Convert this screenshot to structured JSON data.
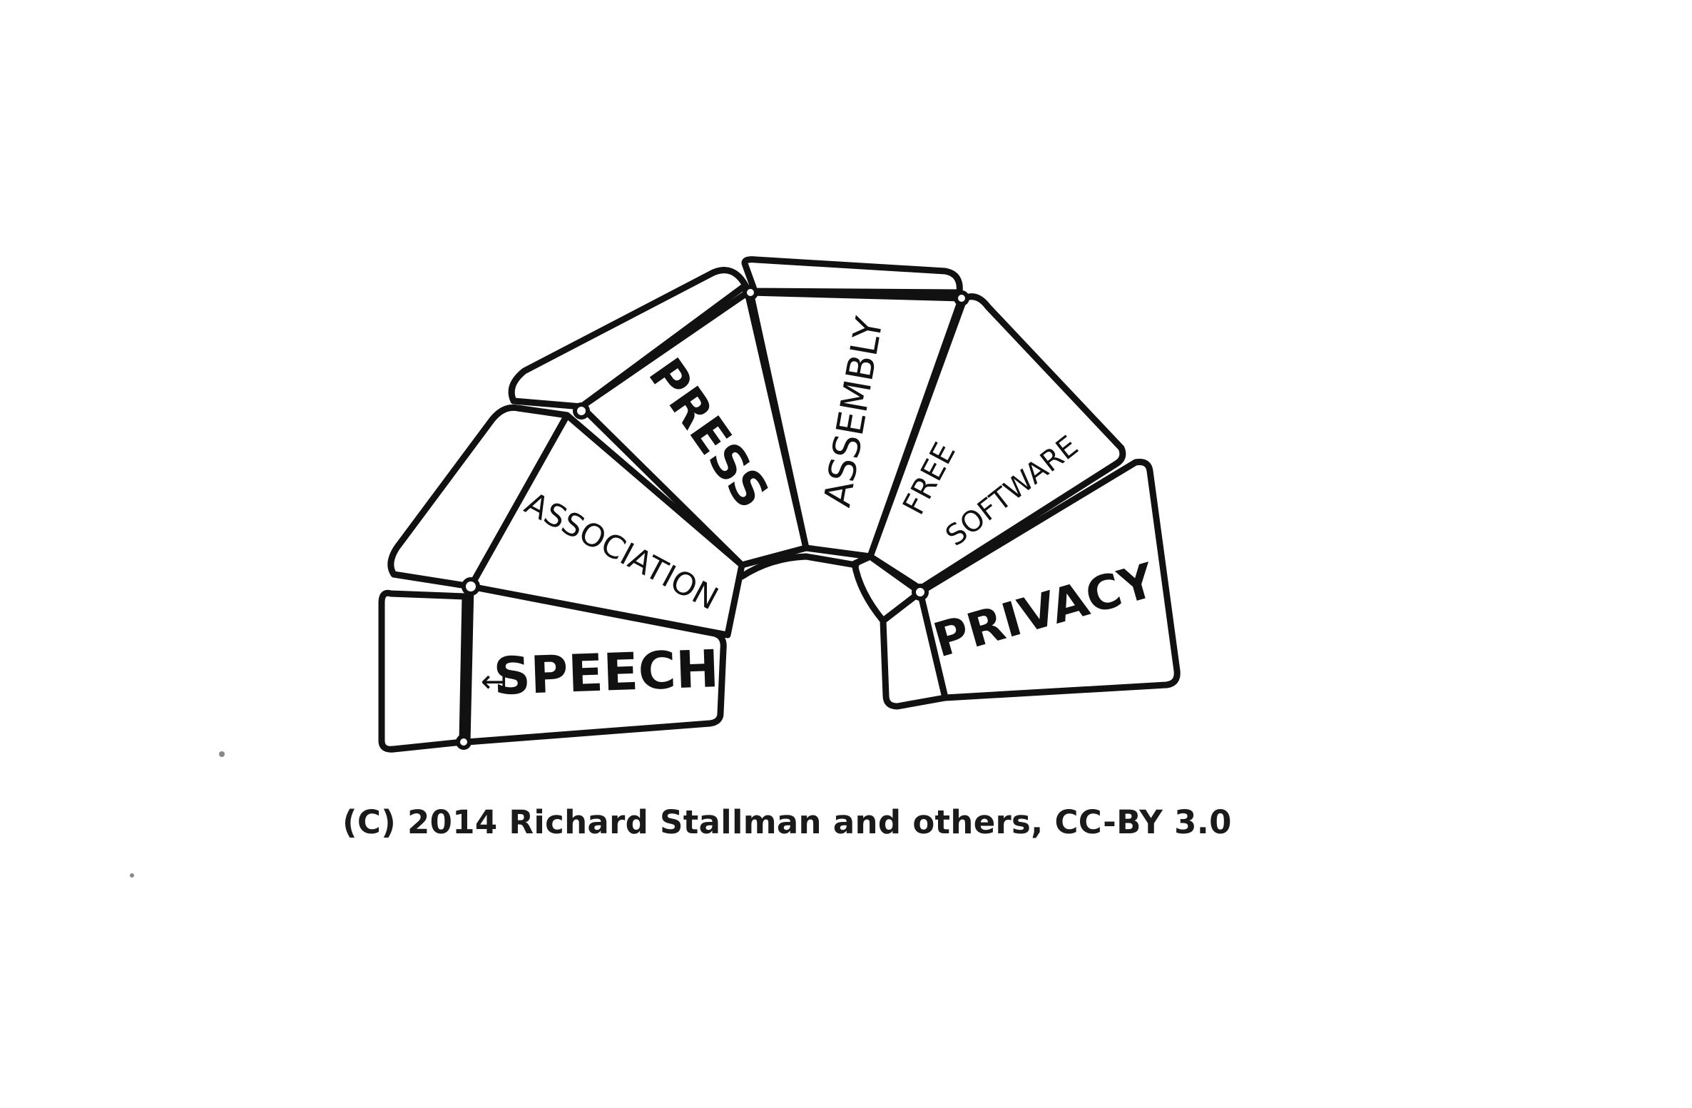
{
  "arch": {
    "colors": {
      "ink": "#111111",
      "paper": "#ffffff",
      "caption": "#1a1a1a",
      "arrow": "#999999"
    },
    "blocks": [
      {
        "key": "speech",
        "label": "SPEECH"
      },
      {
        "key": "association",
        "label": "ASSOCIATION"
      },
      {
        "key": "press",
        "label": "PRESS"
      },
      {
        "key": "assembly",
        "label": "ASSEMBLY"
      },
      {
        "key": "free_software_line1",
        "label": "FREE"
      },
      {
        "key": "free_software_line2",
        "label": "SOFTWARE"
      },
      {
        "key": "privacy",
        "label": "PRIVACY"
      }
    ],
    "speech_arrow": "↤"
  },
  "caption": "(C) 2014 Richard Stallman and others, CC-BY 3.0"
}
